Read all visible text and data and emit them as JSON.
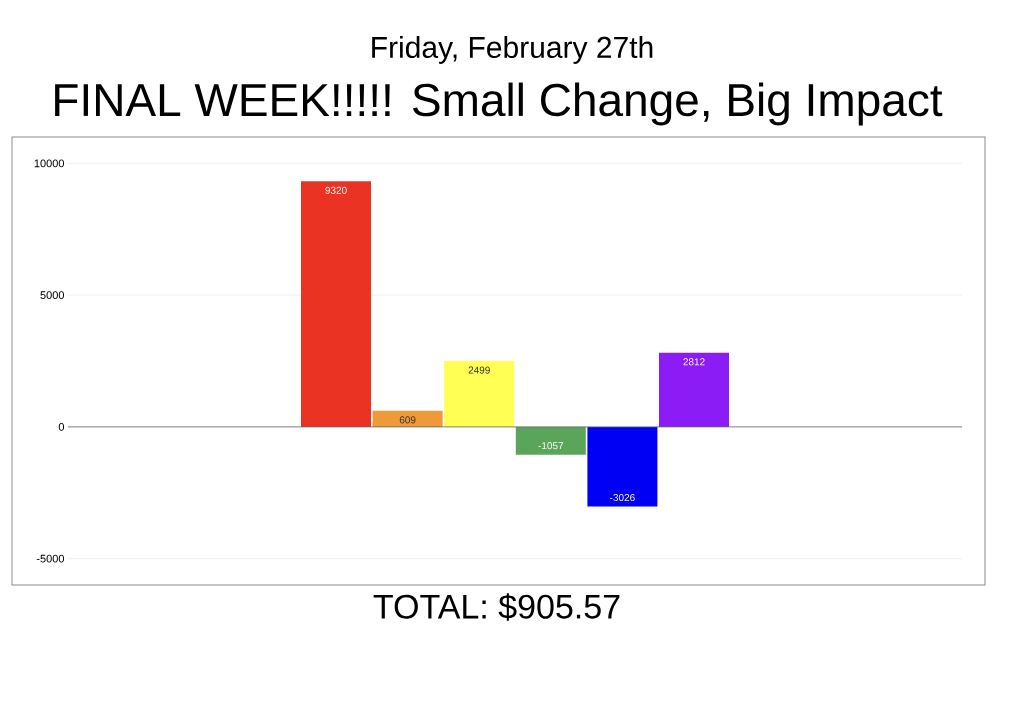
{
  "chart_data": {
    "type": "bar",
    "subtitle": "Friday, February 27th",
    "title": "FINAL WEEK!!!!! Small Change, Big Impact",
    "categories": [
      null
    ],
    "series": [
      {
        "color": "#ea3323",
        "values": [
          9320
        ]
      },
      {
        "color": "#f09a37",
        "values": [
          609
        ]
      },
      {
        "color": "#ffff54",
        "values": [
          2499
        ]
      },
      {
        "color": "#5aa55a",
        "values": [
          -1057
        ]
      },
      {
        "color": "#0000f5",
        "values": [
          -3026
        ]
      },
      {
        "color": "#8b1cf5",
        "values": [
          2812
        ]
      }
    ],
    "ylim": [
      -6000,
      11000
    ],
    "yticks": [
      -5000,
      0,
      5000,
      10000
    ],
    "grid": "y",
    "data_labels": true,
    "annotations": [
      "TOTAL: $905.57"
    ]
  }
}
